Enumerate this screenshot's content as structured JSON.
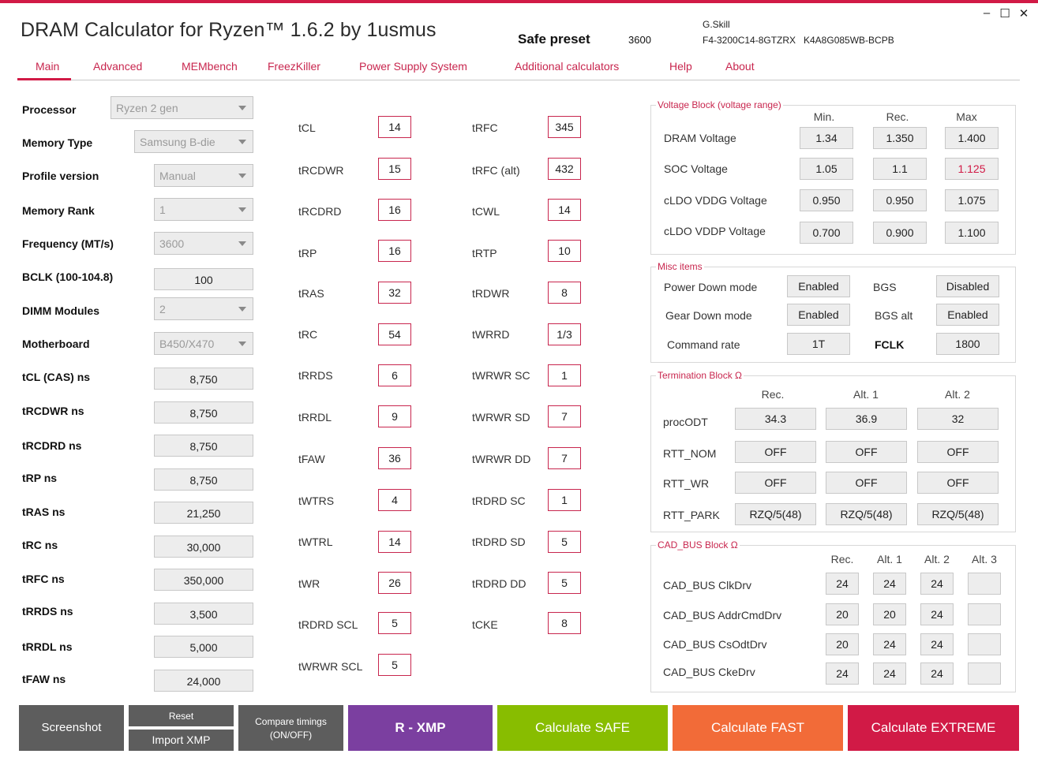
{
  "app": {
    "title": "DRAM Calculator for Ryzen™ 1.6.2 by 1usmus",
    "preset_label": "Safe preset",
    "preset_freq": "3600",
    "kit_brand": "G.Skill",
    "kit_part": "F4-3200C14-8GTZRX",
    "kit_chip": "K4A8G085WB-BCPB"
  },
  "window": {
    "minimize": "–",
    "maximize": "☐",
    "close": "✕"
  },
  "tabs": [
    "Main",
    "Advanced",
    "MEMbench",
    "FreezKiller",
    "Power Supply System",
    "Additional calculators",
    "Help",
    "About"
  ],
  "left": {
    "processor": {
      "label": "Processor",
      "value": "Ryzen 2 gen"
    },
    "memory_type": {
      "label": "Memory Type",
      "value": "Samsung B-die"
    },
    "profile_version": {
      "label": "Profile version",
      "value": "Manual"
    },
    "memory_rank": {
      "label": "Memory Rank",
      "value": "1"
    },
    "frequency": {
      "label": "Frequency (MT/s)",
      "value": "3600"
    },
    "bclk": {
      "label": "BCLK (100-104.8)",
      "value": "100"
    },
    "dimm": {
      "label": "DIMM Modules",
      "value": "2"
    },
    "motherboard": {
      "label": "Motherboard",
      "value": "B450/X470"
    },
    "ns": [
      {
        "label": "tCL (CAS) ns",
        "value": "8,750"
      },
      {
        "label": "tRCDWR ns",
        "value": "8,750"
      },
      {
        "label": "tRCDRD ns",
        "value": "8,750"
      },
      {
        "label": "tRP ns",
        "value": "8,750"
      },
      {
        "label": "tRAS ns",
        "value": "21,250"
      },
      {
        "label": "tRC ns",
        "value": "30,000"
      },
      {
        "label": "tRFC ns",
        "value": "350,000"
      },
      {
        "label": "tRRDS ns",
        "value": "3,500"
      },
      {
        "label": "tRRDL ns",
        "value": "5,000"
      },
      {
        "label": "tFAW ns",
        "value": "24,000"
      }
    ]
  },
  "timings_a": [
    {
      "label": "tCL",
      "value": "14"
    },
    {
      "label": "tRCDWR",
      "value": "15"
    },
    {
      "label": "tRCDRD",
      "value": "16"
    },
    {
      "label": "tRP",
      "value": "16"
    },
    {
      "label": "tRAS",
      "value": "32"
    },
    {
      "label": "tRC",
      "value": "54"
    },
    {
      "label": "tRRDS",
      "value": "6"
    },
    {
      "label": "tRRDL",
      "value": "9"
    },
    {
      "label": "tFAW",
      "value": "36"
    },
    {
      "label": "tWTRS",
      "value": "4"
    },
    {
      "label": "tWTRL",
      "value": "14"
    },
    {
      "label": "tWR",
      "value": "26"
    },
    {
      "label": "tRDRD SCL",
      "value": "5"
    },
    {
      "label": "tWRWR SCL",
      "value": "5"
    }
  ],
  "timings_b": [
    {
      "label": "tRFC",
      "value": "345"
    },
    {
      "label": "tRFC (alt)",
      "value": "432"
    },
    {
      "label": "tCWL",
      "value": "14"
    },
    {
      "label": "tRTP",
      "value": "10"
    },
    {
      "label": "tRDWR",
      "value": "8"
    },
    {
      "label": "tWRRD",
      "value": "1/3"
    },
    {
      "label": "tWRWR SC",
      "value": "1"
    },
    {
      "label": "tWRWR SD",
      "value": "7"
    },
    {
      "label": "tWRWR DD",
      "value": "7"
    },
    {
      "label": "tRDRD SC",
      "value": "1"
    },
    {
      "label": "tRDRD SD",
      "value": "5"
    },
    {
      "label": "tRDRD DD",
      "value": "5"
    },
    {
      "label": "tCKE",
      "value": "8"
    }
  ],
  "voltage": {
    "title": "Voltage Block (voltage range)",
    "headers": [
      "Min.",
      "Rec.",
      "Max"
    ],
    "rows": [
      {
        "label": "DRAM Voltage",
        "min": "1.34",
        "rec": "1.350",
        "max": "1.400"
      },
      {
        "label": "SOC Voltage",
        "min": "1.05",
        "rec": "1.1",
        "max": "1.125"
      },
      {
        "label": "cLDO VDDG Voltage",
        "min": "0.950",
        "rec": "0.950",
        "max": "1.075"
      },
      {
        "label": "cLDO VDDP Voltage",
        "min": "0.700",
        "rec": "0.900",
        "max": "1.100"
      }
    ],
    "highlight_color": "#d11a46"
  },
  "misc": {
    "title": "Misc items",
    "power_down": {
      "label": "Power Down mode",
      "value": "Enabled"
    },
    "gear_down": {
      "label": "Gear Down mode",
      "value": "Enabled"
    },
    "command_rate": {
      "label": "Command rate",
      "value": "1T"
    },
    "bgs": {
      "label": "BGS",
      "value": "Disabled"
    },
    "bgs_alt": {
      "label": "BGS alt",
      "value": "Enabled"
    },
    "fclk": {
      "label": "FCLK",
      "value": "1800"
    }
  },
  "termination": {
    "title": "Termination Block Ω",
    "headers": [
      "Rec.",
      "Alt. 1",
      "Alt. 2"
    ],
    "rows": [
      {
        "label": "procODT",
        "values": [
          "34.3",
          "36.9",
          "32"
        ]
      },
      {
        "label": "RTT_NOM",
        "values": [
          "OFF",
          "OFF",
          "OFF"
        ]
      },
      {
        "label": "RTT_WR",
        "values": [
          "OFF",
          "OFF",
          "OFF"
        ]
      },
      {
        "label": "RTT_PARK",
        "values": [
          "RZQ/5(48)",
          "RZQ/5(48)",
          "RZQ/5(48)"
        ]
      }
    ]
  },
  "cadbus": {
    "title": "CAD_BUS Block Ω",
    "headers": [
      "Rec.",
      "Alt. 1",
      "Alt. 2",
      "Alt. 3"
    ],
    "rows": [
      {
        "label": "CAD_BUS ClkDrv",
        "values": [
          "24",
          "24",
          "24",
          ""
        ]
      },
      {
        "label": "CAD_BUS AddrCmdDrv",
        "values": [
          "20",
          "20",
          "24",
          ""
        ]
      },
      {
        "label": "CAD_BUS CsOdtDrv",
        "values": [
          "20",
          "24",
          "24",
          ""
        ]
      },
      {
        "label": "CAD_BUS CkeDrv",
        "values": [
          "24",
          "24",
          "24",
          ""
        ]
      }
    ]
  },
  "buttons": {
    "screenshot": "Screenshot",
    "reset": "Reset",
    "import_xmp": "Import XMP",
    "compare_line1": "Compare timings",
    "compare_line2": "(ON/OFF)",
    "rxmp": "R - XMP",
    "safe": "Calculate SAFE",
    "fast": "Calculate FAST",
    "extreme": "Calculate EXTREME"
  },
  "colors": {
    "accent": "#d11a46",
    "gray_button": "#5d5d5d",
    "rxmp": "#7b3fa0",
    "safe": "#88bd00",
    "fast": "#f26b38",
    "extreme": "#d11a46"
  }
}
